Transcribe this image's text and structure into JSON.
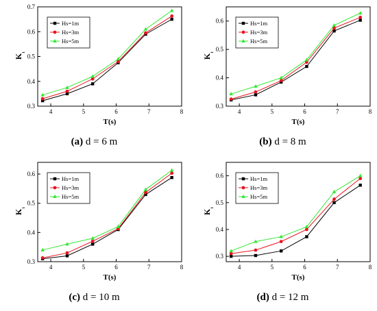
{
  "chart_data": [
    {
      "type": "line",
      "caption": {
        "label": "(a)",
        "text": "d = 6 m"
      },
      "xlabel": "T(s)",
      "ylabel": "K",
      "xlim": [
        3.6,
        8
      ],
      "ylim": [
        0.3,
        0.7
      ],
      "xticks": [
        "4",
        "5",
        "6",
        "7",
        "8"
      ],
      "yticks": [
        "0.3",
        "0.4",
        "0.5",
        "0.6",
        "0.7"
      ],
      "legend_position": "top-left",
      "x": [
        3.75,
        4.5,
        5.28,
        6.06,
        6.9,
        7.7
      ],
      "series": [
        {
          "name": "Hs=1m",
          "color": "#000000",
          "marker": "square",
          "values": [
            0.322,
            0.35,
            0.39,
            0.475,
            0.59,
            0.65
          ]
        },
        {
          "name": "Hs=3m",
          "color": "#e8141e",
          "marker": "circle",
          "values": [
            0.33,
            0.36,
            0.41,
            0.48,
            0.595,
            0.663
          ]
        },
        {
          "name": "Hs=5m",
          "color": "#33e833",
          "marker": "triangle",
          "values": [
            0.345,
            0.375,
            0.42,
            0.49,
            0.61,
            0.685
          ]
        }
      ]
    },
    {
      "type": "line",
      "caption": {
        "label": "(b)",
        "text": "d = 8 m"
      },
      "xlabel": "T(s)",
      "ylabel": "K",
      "xlim": [
        3.6,
        8
      ],
      "ylim": [
        0.3,
        0.65
      ],
      "xticks": [
        "4",
        "5",
        "6",
        "7",
        "8"
      ],
      "yticks": [
        "0.3",
        "0.4",
        "0.5",
        "0.6"
      ],
      "legend_position": "top-left",
      "x": [
        3.75,
        4.5,
        5.28,
        6.06,
        6.9,
        7.7
      ],
      "series": [
        {
          "name": "Hs=1m",
          "color": "#000000",
          "marker": "square",
          "values": [
            0.322,
            0.34,
            0.385,
            0.44,
            0.565,
            0.603
          ]
        },
        {
          "name": "Hs=3m",
          "color": "#e8141e",
          "marker": "circle",
          "values": [
            0.325,
            0.35,
            0.39,
            0.455,
            0.575,
            0.613
          ]
        },
        {
          "name": "Hs=5m",
          "color": "#33e833",
          "marker": "triangle",
          "values": [
            0.343,
            0.37,
            0.4,
            0.463,
            0.585,
            0.628
          ]
        }
      ]
    },
    {
      "type": "line",
      "caption": {
        "label": "(c)",
        "text": "d = 10 m"
      },
      "xlabel": "T(s)",
      "ylabel": "K",
      "xlim": [
        3.6,
        8
      ],
      "ylim": [
        0.3,
        0.64
      ],
      "xticks": [
        "4",
        "5",
        "6",
        "7",
        "8"
      ],
      "yticks": [
        "0.3",
        "0.4",
        "0.5",
        "0.6"
      ],
      "legend_position": "top-left",
      "x": [
        3.75,
        4.5,
        5.28,
        6.06,
        6.9,
        7.7
      ],
      "series": [
        {
          "name": "Hs=1m",
          "color": "#000000",
          "marker": "square",
          "values": [
            0.31,
            0.32,
            0.36,
            0.41,
            0.53,
            0.588
          ]
        },
        {
          "name": "Hs=3m",
          "color": "#e8141e",
          "marker": "circle",
          "values": [
            0.313,
            0.33,
            0.37,
            0.413,
            0.537,
            0.603
          ]
        },
        {
          "name": "Hs=5m",
          "color": "#33e833",
          "marker": "triangle",
          "values": [
            0.34,
            0.36,
            0.38,
            0.42,
            0.547,
            0.613
          ]
        }
      ]
    },
    {
      "type": "line",
      "caption": {
        "label": "(d)",
        "text": "d = 12 m"
      },
      "xlabel": "T(s)",
      "ylabel": "K",
      "xlim": [
        3.6,
        8
      ],
      "ylim": [
        0.28,
        0.65
      ],
      "xticks": [
        "4",
        "5",
        "6",
        "7",
        "8"
      ],
      "yticks": [
        "0.3",
        "0.4",
        "0.5",
        "0.6"
      ],
      "legend_position": "top-left",
      "x": [
        3.75,
        4.5,
        5.28,
        6.06,
        6.9,
        7.7
      ],
      "series": [
        {
          "name": "Hs=1m",
          "color": "#000000",
          "marker": "square",
          "values": [
            0.3,
            0.303,
            0.32,
            0.373,
            0.5,
            0.565
          ]
        },
        {
          "name": "Hs=3m",
          "color": "#e8141e",
          "marker": "circle",
          "values": [
            0.31,
            0.323,
            0.355,
            0.4,
            0.513,
            0.59
          ]
        },
        {
          "name": "Hs=5m",
          "color": "#33e833",
          "marker": "triangle",
          "values": [
            0.32,
            0.355,
            0.373,
            0.41,
            0.54,
            0.6
          ]
        }
      ]
    }
  ]
}
